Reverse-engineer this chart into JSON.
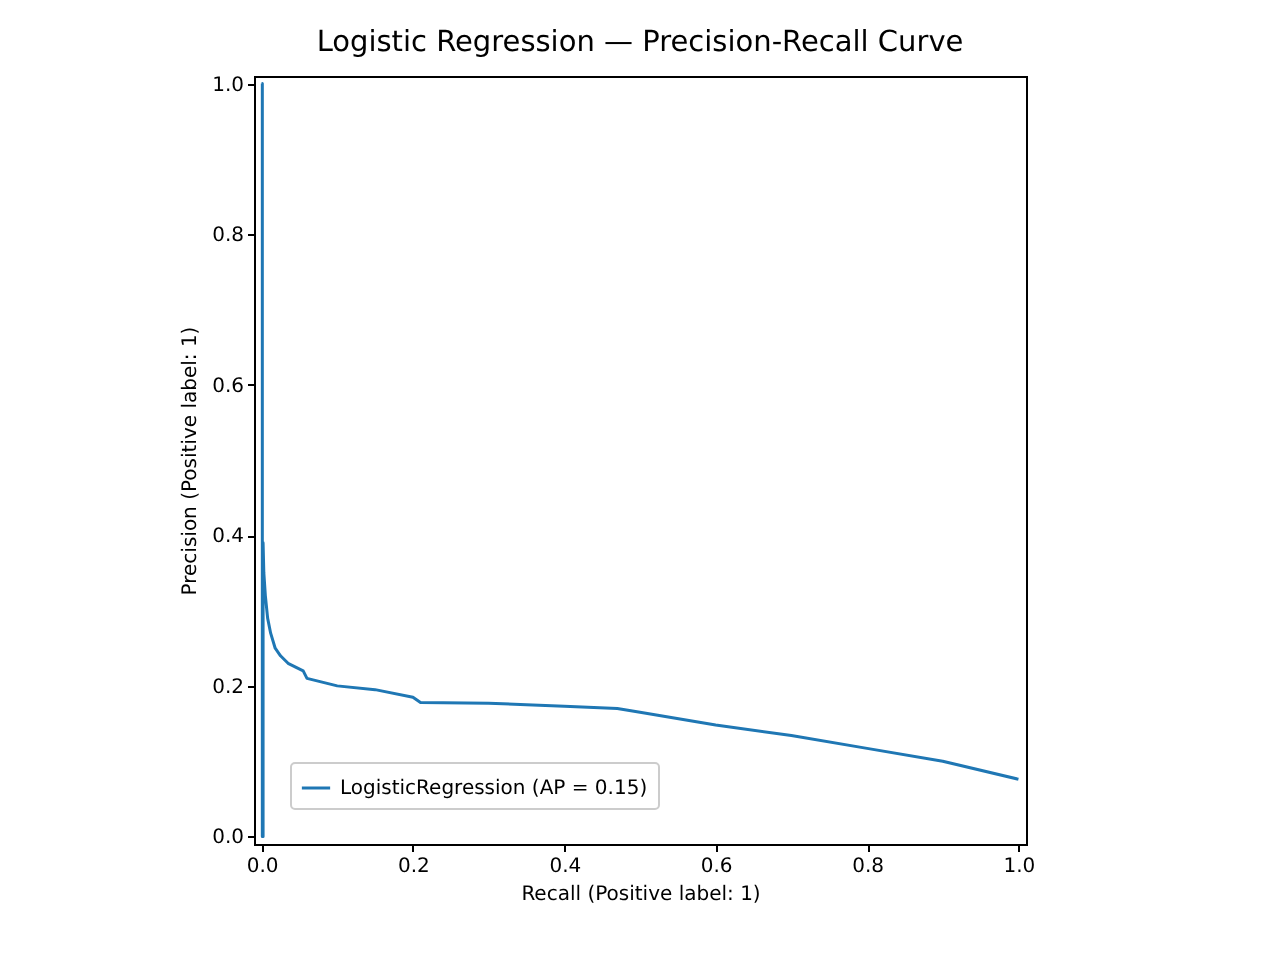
{
  "chart_data": {
    "type": "line",
    "title": "Logistic Regression — Precision-Recall Curve",
    "xlabel": "Recall (Positive label: 1)",
    "ylabel": "Precision (Positive label: 1)",
    "xlim": [
      -0.01,
      1.01
    ],
    "ylim": [
      -0.01,
      1.01
    ],
    "xticks": [
      {
        "value": 0,
        "label": "0.0"
      },
      0.2,
      0.4,
      0.6,
      0.8,
      {
        "value": 1,
        "label": "1.0"
      }
    ],
    "yticks": [
      {
        "value": 0,
        "label": "0.0"
      },
      0.2,
      0.4,
      0.6,
      0.8,
      {
        "value": 1,
        "label": "1.0"
      }
    ],
    "grid": false,
    "legend": "bottom left",
    "series": [
      {
        "name": "LogisticRegression (AP = 0.15)",
        "color": "#1f77b4",
        "x": [
          0,
          0.001,
          0.001,
          0.002,
          0.002,
          0.003,
          0.005,
          0.008,
          0.012,
          0.018,
          0.025,
          0.035,
          0.045,
          0.055,
          0.06,
          0.08,
          0.1,
          0.15,
          0.2,
          0.21,
          0.3,
          0.35,
          0.4,
          0.47,
          0.5,
          0.6,
          0.7,
          0.8,
          0.9,
          1.0
        ],
        "values": [
          1.0,
          1.0,
          0.0,
          0.0,
          0.39,
          0.35,
          0.32,
          0.29,
          0.27,
          0.25,
          0.24,
          0.23,
          0.225,
          0.22,
          0.21,
          0.205,
          0.2,
          0.195,
          0.185,
          0.178,
          0.177,
          0.175,
          0.173,
          0.17,
          0.165,
          0.148,
          0.134,
          0.117,
          0.1,
          0.076
        ]
      }
    ]
  }
}
